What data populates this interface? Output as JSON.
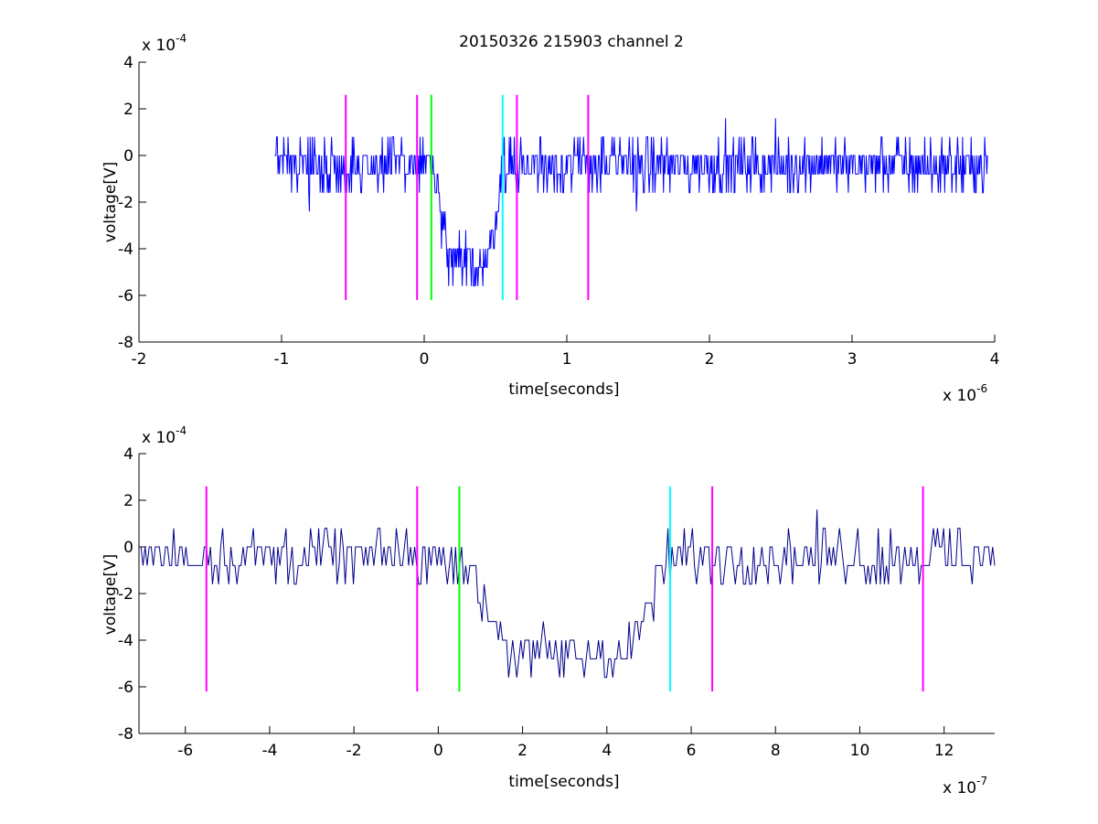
{
  "chart_data": [
    {
      "type": "line",
      "title": "20150326 215903 channel 2",
      "xlabel": "time[seconds]",
      "ylabel": "voltage[V]",
      "x_multiplier": "x 10",
      "x_multiplier_exp": "-6",
      "y_multiplier": "x 10",
      "y_multiplier_exp": "-4",
      "xlim": [
        -2e-06,
        4e-06
      ],
      "ylim": [
        -0.0008,
        0.0004
      ],
      "x_ticks": [
        -2e-06,
        -1e-06,
        0,
        1e-06,
        2e-06,
        3e-06,
        4e-06
      ],
      "x_tick_labels": [
        "-2",
        "-1",
        "0",
        "1",
        "2",
        "3",
        "4"
      ],
      "y_ticks": [
        -0.0008,
        -0.0006,
        -0.0004,
        -0.0002,
        0,
        0.0002,
        0.0004
      ],
      "y_tick_labels": [
        "-8",
        "-6",
        "-4",
        "-2",
        "0",
        "2",
        "4"
      ],
      "grid": false,
      "trace": {
        "color": "#0000ff",
        "x_start": -1.05e-06,
        "x_end": 3.95e-06,
        "sample_count": 1000,
        "baseline": -4e-05,
        "noise": 9e-05,
        "quant_step": 8e-05,
        "dip": {
          "start": 5e-08,
          "end": 5.5e-07,
          "depth": -0.00042
        }
      },
      "markers": [
        {
          "x": -5.5e-07,
          "color": "#ff00ff",
          "y_low": -0.00062,
          "y_high": 0.00026
        },
        {
          "x": -5e-08,
          "color": "#ff00ff",
          "y_low": -0.00062,
          "y_high": 0.00026
        },
        {
          "x": 5e-08,
          "color": "#00ff00",
          "y_low": -0.00062,
          "y_high": 0.00026
        },
        {
          "x": 5.5e-07,
          "color": "#00ffff",
          "y_low": -0.00062,
          "y_high": 0.00026
        },
        {
          "x": 6.5e-07,
          "color": "#ff00ff",
          "y_low": -0.00062,
          "y_high": 0.00026
        },
        {
          "x": 1.15e-06,
          "color": "#ff00ff",
          "y_low": -0.00062,
          "y_high": 0.00026
        }
      ]
    },
    {
      "type": "line",
      "title": "",
      "xlabel": "time[seconds]",
      "ylabel": "voltage[V]",
      "x_multiplier": "x 10",
      "x_multiplier_exp": "-7",
      "y_multiplier": "x 10",
      "y_multiplier_exp": "-4",
      "xlim": [
        -7.1e-07,
        1.32e-06
      ],
      "ylim": [
        -0.0008,
        0.0004
      ],
      "x_ticks": [
        -6e-07,
        -4e-07,
        -2e-07,
        0,
        2e-07,
        4e-07,
        6e-07,
        8e-07,
        1e-06,
        1.2e-06
      ],
      "x_tick_labels": [
        "-6",
        "-4",
        "-2",
        "0",
        "2",
        "4",
        "6",
        "8",
        "10",
        "12"
      ],
      "y_ticks": [
        -0.0008,
        -0.0006,
        -0.0004,
        -0.0002,
        0,
        0.0002,
        0.0004
      ],
      "y_tick_labels": [
        "-8",
        "-6",
        "-4",
        "-2",
        "0",
        "2",
        "4"
      ],
      "grid": false,
      "trace": {
        "color": "#00008b",
        "x_start": -7.1e-07,
        "x_end": 1.32e-06,
        "sample_count": 420,
        "baseline": -4e-05,
        "noise": 9e-05,
        "quant_step": 8e-05,
        "dip": {
          "start": 5e-08,
          "end": 5.5e-07,
          "depth": -0.00042
        }
      },
      "markers": [
        {
          "x": -5.5e-07,
          "color": "#ff00ff",
          "y_low": -0.00062,
          "y_high": 0.00026
        },
        {
          "x": -5e-08,
          "color": "#ff00ff",
          "y_low": -0.00062,
          "y_high": 0.00026
        },
        {
          "x": 5e-08,
          "color": "#00ff00",
          "y_low": -0.00062,
          "y_high": 0.00026
        },
        {
          "x": 5.5e-07,
          "color": "#00ffff",
          "y_low": -0.00062,
          "y_high": 0.00026
        },
        {
          "x": 6.5e-07,
          "color": "#ff00ff",
          "y_low": -0.00062,
          "y_high": 0.00026
        },
        {
          "x": 1.15e-06,
          "color": "#ff00ff",
          "y_low": -0.00062,
          "y_high": 0.00026
        }
      ]
    }
  ]
}
